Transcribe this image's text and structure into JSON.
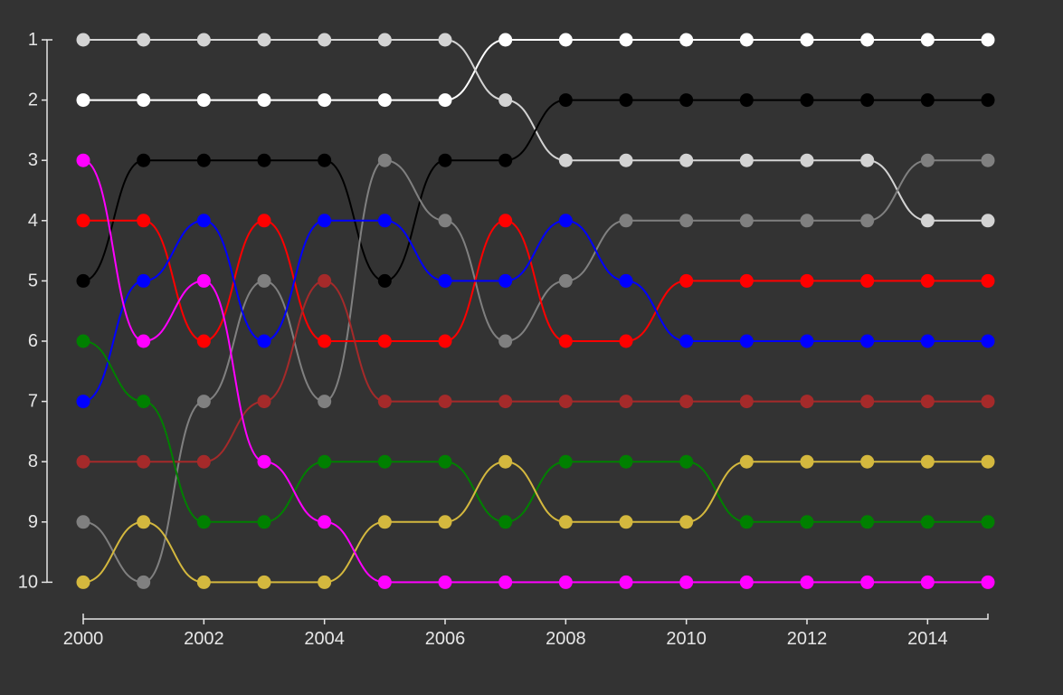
{
  "chart_data": {
    "type": "line",
    "title": "",
    "xlabel": "",
    "ylabel": "",
    "x": [
      2000,
      2001,
      2002,
      2003,
      2004,
      2005,
      2006,
      2007,
      2008,
      2009,
      2010,
      2011,
      2012,
      2013,
      2014,
      2015
    ],
    "xlim": [
      2000,
      2015
    ],
    "ylim": [
      1,
      10
    ],
    "y_inverted": true,
    "x_ticks": [
      "2000",
      "2002",
      "2004",
      "2006",
      "2008",
      "2010",
      "2012",
      "2014"
    ],
    "y_ticks": [
      "1",
      "2",
      "3",
      "4",
      "5",
      "6",
      "7",
      "8",
      "9",
      "10"
    ],
    "grid": false,
    "background": "#333333",
    "series": [
      {
        "color": "#ffffff",
        "values": [
          2,
          2,
          2,
          2,
          2,
          2,
          2,
          1,
          1,
          1,
          1,
          1,
          1,
          1,
          1,
          1
        ]
      },
      {
        "color": "#d3d3d3",
        "values": [
          1,
          1,
          1,
          1,
          1,
          1,
          1,
          2,
          3,
          3,
          3,
          3,
          3,
          3,
          4,
          4
        ]
      },
      {
        "color": "#000000",
        "values": [
          5,
          3,
          3,
          3,
          3,
          5,
          3,
          3,
          2,
          2,
          2,
          2,
          2,
          2,
          2,
          2
        ]
      },
      {
        "color": "#808080",
        "values": [
          9,
          10,
          7,
          5,
          7,
          3,
          4,
          6,
          5,
          4,
          4,
          4,
          4,
          4,
          3,
          3
        ]
      },
      {
        "color": "#ff0000",
        "values": [
          4,
          4,
          6,
          4,
          6,
          6,
          6,
          4,
          6,
          6,
          5,
          5,
          5,
          5,
          5,
          5
        ]
      },
      {
        "color": "#0000ff",
        "values": [
          7,
          5,
          4,
          6,
          4,
          4,
          5,
          5,
          4,
          5,
          6,
          6,
          6,
          6,
          6,
          6
        ]
      },
      {
        "color": "#a52a2a",
        "values": [
          8,
          8,
          8,
          7,
          5,
          7,
          7,
          7,
          7,
          7,
          7,
          7,
          7,
          7,
          7,
          7
        ]
      },
      {
        "color": "#008000",
        "values": [
          6,
          7,
          9,
          9,
          8,
          8,
          8,
          9,
          8,
          8,
          8,
          9,
          9,
          9,
          9,
          9
        ]
      },
      {
        "color": "#d4b83e",
        "values": [
          10,
          9,
          10,
          10,
          10,
          9,
          9,
          8,
          9,
          9,
          9,
          8,
          8,
          8,
          8,
          8
        ]
      },
      {
        "color": "#ff00ff",
        "values": [
          3,
          6,
          5,
          8,
          9,
          10,
          10,
          10,
          10,
          10,
          10,
          10,
          10,
          10,
          10,
          10
        ]
      }
    ]
  }
}
